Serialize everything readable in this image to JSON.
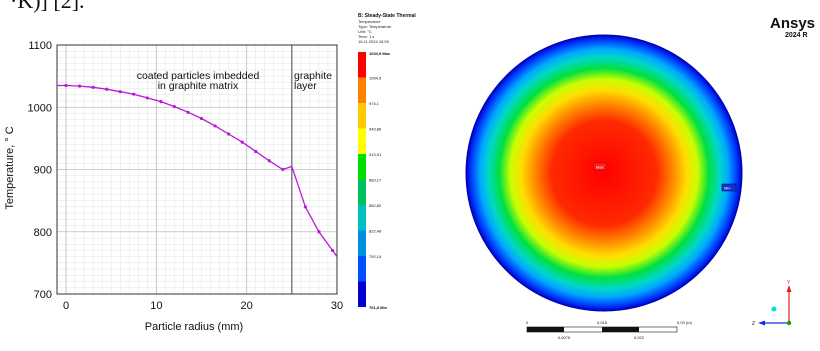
{
  "header": {
    "fragment": "·K)] [2]."
  },
  "chart_data": {
    "type": "line",
    "xlabel": "Particle radius (mm)",
    "ylabel": "Temperature, ° C",
    "xlim": [
      -1,
      30
    ],
    "ylim": [
      700,
      1100
    ],
    "xticks": [
      "0",
      "10",
      "20",
      "30"
    ],
    "yticks": [
      "700",
      "800",
      "900",
      "1000",
      "1100"
    ],
    "grid": true,
    "x": [
      -1,
      0,
      1.5,
      3,
      4.5,
      6,
      7.5,
      9,
      10.5,
      12,
      13.5,
      15,
      16.5,
      18,
      19.5,
      21,
      22.5,
      24,
      25,
      26.5,
      28,
      29.5,
      30
    ],
    "y": [
      1035,
      1035,
      1034,
      1032,
      1029,
      1025,
      1021,
      1015,
      1009,
      1001,
      992,
      982,
      970,
      957,
      944,
      929,
      914,
      900,
      905,
      840,
      800,
      770,
      760
    ],
    "marker_x": [
      0,
      1.5,
      3,
      4.5,
      6,
      7.5,
      9,
      10.5,
      12,
      13.5,
      15,
      16.5,
      18,
      19.5,
      21,
      22.5,
      24,
      26.5,
      28,
      29.5
    ],
    "boundary_x": 25,
    "annotations": [
      {
        "lines": [
          "coated particles imbedded",
          "in graphite matrix"
        ]
      },
      {
        "lines": [
          "graphite",
          "layer"
        ]
      }
    ],
    "line_color": "#b81ad6"
  },
  "ansys": {
    "title": "B: Steady-State Thermal",
    "subtitle_lines": [
      "Temperature",
      "Type: Temperature",
      "Unit: °C",
      "Time: 1 s",
      "16.11.2024 15:59"
    ],
    "brand": "Ansys",
    "version": "2024 R",
    "legend": {
      "entries": [
        "1034,9 Max",
        "1004,5",
        "974,1",
        "943,86",
        "913,51",
        "883,17",
        "852,82",
        "822,48",
        "792,14",
        "761,8 Min"
      ],
      "colors": [
        "#ff0000",
        "#ff8000",
        "#ffc800",
        "#ffff00",
        "#00e000",
        "#00c060",
        "#00c0c0",
        "#0090e0",
        "#0050ff",
        "#0000d0"
      ]
    },
    "probes": {
      "max": "Max",
      "min": "Min"
    },
    "scale": {
      "top": [
        "0",
        "0,015",
        "0,03 (m)"
      ],
      "bottom": [
        "0,0075",
        "0,022"
      ]
    },
    "axes": {
      "y": "Y",
      "z": "Z"
    }
  }
}
